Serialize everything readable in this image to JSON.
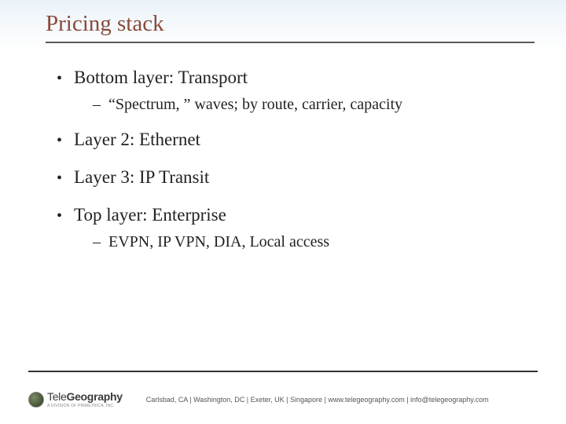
{
  "title": "Pricing stack",
  "bullets": {
    "b1": "Bottom layer: Transport",
    "b1_sub": "“Spectrum, ” waves; by route, carrier, capacity",
    "b2": "Layer 2: Ethernet",
    "b3": "Layer 3: IP Transit",
    "b4": "Top layer: Enterprise",
    "b4_sub": "EVPN, IP VPN, DIA, Local access"
  },
  "footer": {
    "logo_light": "Tele",
    "logo_bold": "Geography",
    "logo_sub": "A DIVISION OF PRIMETRICA, INC.",
    "info": "Carlsbad, CA | Washington, DC | Exeter, UK | Singapore | www.telegeography.com | info@telegeography.com"
  },
  "colors": {
    "title": "#8a4a3a",
    "rule": "#5b5b5b",
    "text": "#222222",
    "footer_text": "#555555",
    "bg_top": "#eaf2f8",
    "bg_bottom": "#ffffff"
  }
}
